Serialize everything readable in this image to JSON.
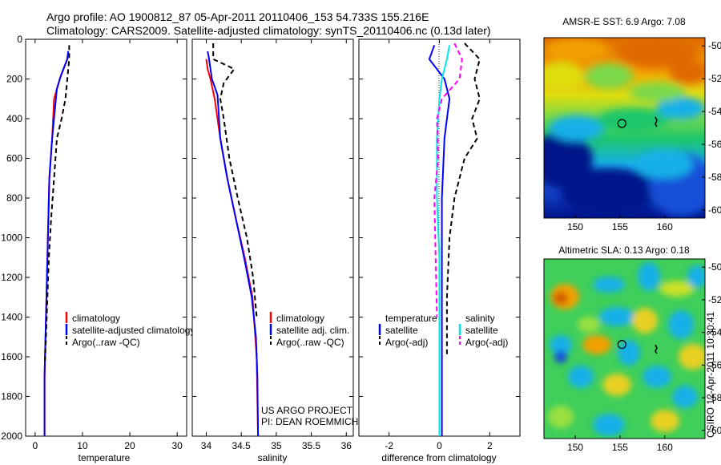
{
  "header": {
    "line1": "Argo profile: AO 1900812_87 05-Apr-2011 20110406_153 54.733S 155.216E",
    "line2": "Climatology: CARS2009. Satellite-adjusted climatology: synTS_20110406.nc (0.13d later)"
  },
  "colors": {
    "climatology": "#ff0000",
    "satellite": "#0000ff",
    "argo": "#000000",
    "salinity_satellite": "#00e5ee",
    "salinity_argo": "#ff00ff"
  },
  "chart_data": [
    {
      "type": "line",
      "xlabel": "temperature",
      "xlim": [
        -2,
        32
      ],
      "ylim": [
        2000,
        0
      ],
      "xticks": [
        "0",
        "10",
        "20",
        "30"
      ],
      "yticks": [
        "0",
        "200",
        "400",
        "600",
        "800",
        "1000",
        "1200",
        "1400",
        "1600",
        "1800",
        "2000"
      ],
      "legend": [
        "climatology",
        "satellite-adjusted climatology",
        "Argo(..raw -QC)"
      ],
      "series": [
        {
          "name": "climatology",
          "color": "red",
          "style": "solid",
          "x": [
            7.0,
            6.8,
            5.2,
            4.0,
            3.6,
            3.0,
            2.8,
            2.6,
            2.4,
            2.2,
            2.0,
            2.0,
            2.0
          ],
          "y": [
            60,
            100,
            200,
            300,
            500,
            700,
            900,
            1100,
            1300,
            1500,
            1700,
            1900,
            2000
          ]
        },
        {
          "name": "satellite-adjusted climatology",
          "color": "blue",
          "style": "solid",
          "x": [
            7.0,
            6.8,
            5.5,
            4.6,
            3.6,
            3.0,
            2.8,
            2.6,
            2.4,
            2.2,
            2.0,
            2.0
          ],
          "y": [
            60,
            100,
            180,
            250,
            500,
            700,
            900,
            1100,
            1300,
            1500,
            1700,
            2000
          ]
        },
        {
          "name": "Argo(..raw -QC)",
          "color": "black",
          "style": "dashed",
          "x": [
            7.2,
            7.2,
            6.8,
            6.4,
            5.6,
            4.6,
            4.0,
            3.4,
            2.9,
            2.6,
            2.3,
            2.1
          ],
          "y": [
            30,
            100,
            200,
            300,
            400,
            500,
            700,
            900,
            1100,
            1300,
            1500,
            1620
          ]
        }
      ]
    },
    {
      "type": "line",
      "xlabel": "salinity",
      "xlim": [
        33.8,
        36.1
      ],
      "ylim": [
        2000,
        0
      ],
      "xticks": [
        "34",
        "34.5",
        "35",
        "35.5",
        "36"
      ],
      "legend": [
        "climatology",
        "satellite adj. clim.",
        "Argo(..raw -QC)"
      ],
      "annotation": [
        "US ARGO PROJECT",
        "PI: DEAN ROEMMICH"
      ],
      "series": [
        {
          "name": "climatology",
          "color": "red",
          "style": "solid",
          "x": [
            34.0,
            34.02,
            34.06,
            34.12,
            34.2,
            34.3,
            34.42,
            34.55,
            34.66,
            34.72,
            34.74
          ],
          "y": [
            100,
            150,
            200,
            300,
            500,
            700,
            900,
            1100,
            1300,
            1600,
            2000
          ]
        },
        {
          "name": "satellite adj. clim.",
          "color": "blue",
          "style": "solid",
          "x": [
            34.02,
            34.04,
            34.08,
            34.16,
            34.2,
            34.3,
            34.42,
            34.54,
            34.65,
            34.71,
            34.73,
            34.74
          ],
          "y": [
            60,
            100,
            200,
            280,
            500,
            700,
            900,
            1100,
            1300,
            1500,
            1700,
            2000
          ]
        },
        {
          "name": "Argo(..raw -QC)",
          "color": "black",
          "style": "dashed",
          "x": [
            34.1,
            34.1,
            34.4,
            34.25,
            34.2,
            34.25,
            34.33,
            34.45,
            34.58,
            34.67,
            34.72
          ],
          "y": [
            20,
            100,
            150,
            220,
            300,
            400,
            600,
            800,
            1000,
            1200,
            1400
          ]
        }
      ]
    },
    {
      "type": "line",
      "xlabel": "difference from climatology",
      "xlim": [
        -3.2,
        3.2
      ],
      "ylim": [
        2000,
        0
      ],
      "xticks": [
        "-2",
        "0",
        "2"
      ],
      "legend": [
        {
          "group": "temperature",
          "items": [
            "satellite",
            "Argo(-adj)"
          ]
        },
        {
          "group": "salinity",
          "items": [
            "satellite",
            "Argo(-adj)"
          ]
        }
      ],
      "series": [
        {
          "name": "temperature satellite",
          "color": "blue",
          "style": "solid",
          "x": [
            -0.2,
            -0.4,
            0.2,
            0.4,
            0.3,
            0.2,
            0.1,
            0.1,
            0.1,
            0.1,
            0.1
          ],
          "y": [
            30,
            100,
            200,
            300,
            400,
            500,
            800,
            1100,
            1400,
            1700,
            2000
          ]
        },
        {
          "name": "temperature Argo(-adj)",
          "color": "black",
          "style": "dashed",
          "x": [
            1.0,
            1.6,
            1.4,
            1.6,
            1.3,
            1.5,
            1.0,
            0.8,
            0.6,
            0.4,
            0.3,
            0.3
          ],
          "y": [
            20,
            100,
            200,
            300,
            400,
            500,
            600,
            700,
            800,
            1000,
            1300,
            1600
          ]
        },
        {
          "name": "salinity satellite",
          "color": "cyan",
          "style": "solid",
          "x": [
            0.4,
            0.3,
            0.1,
            0.0,
            -0.1,
            -0.1,
            0.0,
            0.0,
            0.0,
            0.0
          ],
          "y": [
            30,
            100,
            200,
            300,
            500,
            800,
            1100,
            1400,
            1700,
            2000
          ]
        },
        {
          "name": "salinity Argo(-adj)",
          "color": "magenta",
          "style": "dashed",
          "x": [
            0.6,
            0.9,
            0.8,
            0.1,
            -0.1,
            -0.05,
            -0.2,
            -0.15,
            -0.1
          ],
          "y": [
            20,
            100,
            200,
            300,
            400,
            600,
            800,
            1100,
            1400
          ]
        }
      ]
    },
    {
      "type": "heatmap",
      "title": "AMSR-E SST: 6.9 Argo: 7.08",
      "xlim": [
        146.5,
        164.5
      ],
      "ylim": [
        -60.5,
        -49.5
      ],
      "xticks": [
        "150",
        "155",
        "160"
      ],
      "yticks": [
        "-50",
        "-52",
        "-54",
        "-56",
        "-58",
        "-60"
      ],
      "marker": {
        "lon": 155.216,
        "lat": -54.733
      },
      "colormap": "jet"
    },
    {
      "type": "heatmap",
      "title": "Altimetric SLA: 0.13 Argo: 0.18",
      "xlim": [
        146.5,
        164.5
      ],
      "ylim": [
        -60.5,
        -49.5
      ],
      "xticks": [
        "150",
        "155",
        "160"
      ],
      "yticks": [
        "-50",
        "-52",
        "-54",
        "-56",
        "-58",
        "-60"
      ],
      "marker": {
        "lon": 155.216,
        "lat": -54.733
      },
      "colormap": "jet"
    }
  ],
  "footer": {
    "stamp": "CSIRO 12-Apr-2011 10:30:41"
  }
}
